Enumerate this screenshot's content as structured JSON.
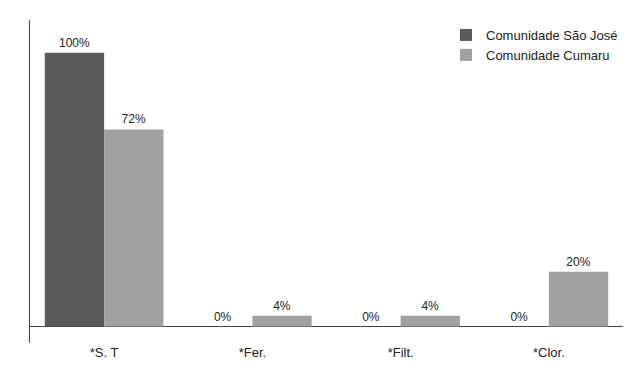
{
  "chart_data": {
    "type": "bar",
    "categories": [
      "*S. T",
      "*Fer.",
      "*Filt.",
      "*Clor."
    ],
    "series": [
      {
        "name": "Comunidade São José",
        "color": "#5a5a5a",
        "values": [
          100,
          0,
          0,
          0
        ],
        "value_labels": [
          "100%",
          "0%",
          "0%",
          "0%"
        ]
      },
      {
        "name": "Comunidade Cumaru",
        "color": "#a0a0a0",
        "values": [
          72,
          4,
          4,
          20
        ],
        "value_labels": [
          "72%",
          "4%",
          "4%",
          "20%"
        ]
      }
    ],
    "ylim": [
      -6,
      112
    ],
    "yticks": [],
    "grid": false,
    "legend": "upper right",
    "data_labels": true,
    "tick_labels": "x"
  }
}
